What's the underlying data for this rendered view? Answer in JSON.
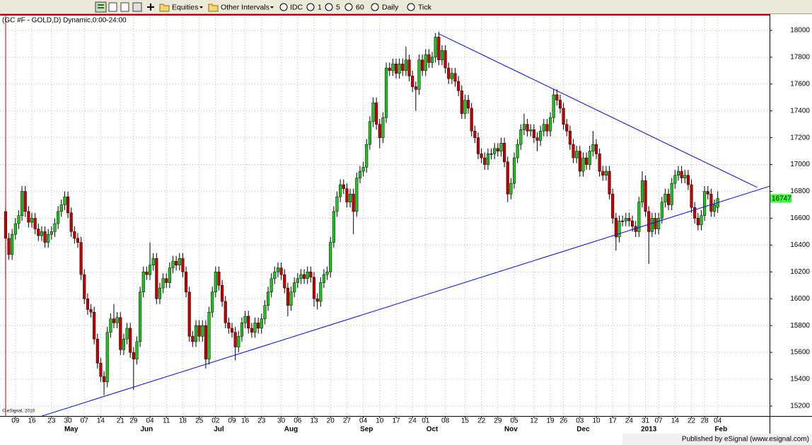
{
  "toolbar": {
    "items": [
      "Equities",
      "Other Intervals",
      "IDC",
      "1",
      "5",
      "60",
      "Daily",
      "Tick"
    ]
  },
  "footer": {
    "published": "Published by eSignal (www.esignal.com)"
  },
  "chart_data": {
    "type": "candlestick",
    "title": "(GC #F - GOLD,D) Dynamic,0:00-24:00",
    "watermark": "© eSignal, 2010",
    "up_color": "#1ec31e",
    "down_color": "#c80000",
    "doji_color": "#000000",
    "grid": true,
    "xlim": [
      -1.7,
      232.8
    ],
    "ylim": [
      15126,
      18121
    ],
    "yticks": [
      15200,
      15400,
      15600,
      15800,
      16000,
      16200,
      16400,
      16600,
      16800,
      17000,
      17200,
      17400,
      17600,
      17800,
      18000
    ],
    "last_price": 16747,
    "last_price_color": "#3cff3c",
    "categories": [
      null,
      null,
      null,
      "09",
      null,
      null,
      null,
      null,
      "16",
      null,
      null,
      null,
      null,
      null,
      "23",
      null,
      null,
      null,
      null,
      "30",
      null,
      null,
      null,
      null,
      "07",
      null,
      null,
      null,
      null,
      "14",
      null,
      null,
      null,
      null,
      null,
      "21",
      null,
      null,
      null,
      "29",
      null,
      null,
      null,
      null,
      "04",
      null,
      null,
      null,
      null,
      "11",
      null,
      null,
      null,
      null,
      "18",
      null,
      null,
      null,
      null,
      "25",
      null,
      null,
      null,
      null,
      "02",
      null,
      null,
      null,
      null,
      "09",
      null,
      null,
      null,
      "16",
      null,
      null,
      null,
      null,
      "23",
      null,
      null,
      null,
      null,
      null,
      "30",
      null,
      null,
      null,
      null,
      "06",
      null,
      null,
      null,
      null,
      "13",
      null,
      null,
      null,
      null,
      "20",
      null,
      null,
      null,
      null,
      "27",
      null,
      null,
      null,
      null,
      "04",
      null,
      null,
      null,
      null,
      "10",
      null,
      null,
      null,
      null,
      "17",
      null,
      null,
      null,
      null,
      "24",
      null,
      null,
      null,
      "01",
      null,
      null,
      null,
      null,
      null,
      "08",
      null,
      null,
      null,
      null,
      null,
      "15",
      null,
      null,
      null,
      null,
      "22",
      null,
      null,
      null,
      null,
      "29",
      null,
      null,
      null,
      null,
      "05",
      null,
      null,
      null,
      null,
      null,
      "12",
      null,
      null,
      null,
      null,
      "19",
      null,
      null,
      null,
      "26",
      null,
      null,
      null,
      null,
      "03",
      null,
      null,
      null,
      null,
      "10",
      null,
      null,
      null,
      null,
      "17",
      null,
      null,
      null,
      null,
      "24",
      null,
      null,
      null,
      null,
      "31",
      null,
      null,
      null,
      "07",
      null,
      null,
      null,
      null,
      "14",
      null,
      null,
      null,
      null,
      "22",
      null,
      null,
      null,
      "28",
      null,
      null,
      null,
      "04"
    ],
    "month_labels": [
      {
        "value": 20,
        "label": "May"
      },
      {
        "value": 43,
        "label": "Jun"
      },
      {
        "value": 65,
        "label": "Jul"
      },
      {
        "value": 87,
        "label": "Aug"
      },
      {
        "value": 110,
        "label": "Sep"
      },
      {
        "value": 130,
        "label": "Oct"
      },
      {
        "value": 154,
        "label": "Nov"
      },
      {
        "value": 176,
        "label": "Dec"
      },
      {
        "value": 196,
        "label": "2013"
      },
      {
        "value": 218,
        "label": "Feb"
      }
    ],
    "open": [
      16650,
      16450,
      16330,
      16480,
      16560,
      16620,
      16800,
      16650,
      16570,
      16600,
      16520,
      16470,
      16500,
      16420,
      16480,
      16500,
      16560,
      16650,
      16700,
      16760,
      16640,
      16500,
      16450,
      16420,
      16180,
      16000,
      15920,
      15900,
      15700,
      15520,
      15420,
      15380,
      15750,
      15850,
      15820,
      15860,
      15620,
      15700,
      15780,
      15600,
      15550,
      15680,
      16050,
      16200,
      16180,
      16250,
      16300,
      16000,
      16080,
      16150,
      16120,
      16230,
      16280,
      16250,
      16300,
      16200,
      16050,
      15720,
      15680,
      15800,
      15720,
      15800,
      15550,
      15900,
      16050,
      16200,
      16100,
      15980,
      15820,
      15780,
      15750,
      15640,
      15720,
      15820,
      15870,
      15780,
      15750,
      15820,
      15780,
      15850,
      15950,
      16050,
      16150,
      16200,
      16230,
      16180,
      16080,
      15950,
      16050,
      16120,
      16150,
      16180,
      16150,
      16200,
      16160,
      16000,
      15980,
      16120,
      16180,
      16200,
      16420,
      16650,
      16760,
      16850,
      16820,
      16720,
      16780,
      16650,
      16900,
      16950,
      16980,
      17150,
      17320,
      17460,
      17300,
      17200,
      17350,
      17720,
      17700,
      17750,
      17680,
      17750,
      17700,
      17780,
      17660,
      17580,
      17560,
      17780,
      17700,
      17820,
      17760,
      17800,
      17950,
      17780,
      17850,
      17720,
      17640,
      17680,
      17620,
      17550,
      17380,
      17480,
      17420,
      17250,
      17200,
      17080,
      17050,
      17000,
      17080,
      17080,
      17120,
      17100,
      17160,
      17020,
      16780,
      16860,
      17050,
      17150,
      17260,
      17300,
      17250,
      17260,
      17200,
      17180,
      17250,
      17300,
      17250,
      17350,
      17520,
      17480,
      17420,
      17300,
      17250,
      17150,
      17050,
      17100,
      16950,
      17050,
      17000,
      17100,
      17150,
      17080,
      16950,
      16920,
      16950,
      16780,
      16600,
      16460,
      16580,
      16580,
      16600,
      16580,
      16540,
      16500,
      16720,
      16880,
      16650,
      16500,
      16600,
      16520,
      16600,
      16720,
      16780,
      16700,
      16860,
      16920,
      16950,
      16900,
      16920,
      16850,
      16680,
      16600,
      16550,
      16620,
      16800,
      16780,
      16650,
      16680
    ],
    "high": [
      16700,
      16490,
      16520,
      16600,
      16660,
      16840,
      16840,
      16690,
      16640,
      16640,
      16560,
      16540,
      16540,
      16520,
      16540,
      16600,
      16690,
      16740,
      16800,
      16800,
      16680,
      16540,
      16490,
      16460,
      16220,
      16040,
      15960,
      15940,
      15740,
      15560,
      15460,
      15790,
      15890,
      15960,
      15900,
      15900,
      15740,
      15820,
      15820,
      15640,
      15720,
      16090,
      16240,
      16240,
      16420,
      16340,
      16340,
      16120,
      16190,
      16190,
      16270,
      16320,
      16320,
      16340,
      16340,
      16240,
      16090,
      15760,
      15840,
      15840,
      15840,
      15840,
      15940,
      16090,
      16240,
      16240,
      16140,
      16020,
      15860,
      15820,
      15790,
      15760,
      15860,
      15910,
      15910,
      15820,
      15860,
      15860,
      15890,
      15990,
      16090,
      16190,
      16240,
      16270,
      16270,
      16220,
      16120,
      16090,
      16160,
      16190,
      16220,
      16220,
      16240,
      16240,
      16200,
      16040,
      16160,
      16220,
      16240,
      16460,
      16690,
      16800,
      16890,
      16890,
      16860,
      16820,
      16820,
      16940,
      16990,
      17020,
      17190,
      17360,
      17500,
      17500,
      17340,
      17390,
      17760,
      17760,
      17790,
      17790,
      17790,
      17790,
      17880,
      17820,
      17700,
      17620,
      17820,
      17820,
      17860,
      17860,
      17840,
      17980,
      17990,
      17890,
      17890,
      17760,
      17720,
      17720,
      17660,
      17590,
      17520,
      17520,
      17460,
      17290,
      17240,
      17120,
      17090,
      17120,
      17120,
      17160,
      17160,
      17200,
      17200,
      17060,
      16900,
      17090,
      17190,
      17300,
      17380,
      17340,
      17300,
      17300,
      17240,
      17290,
      17340,
      17340,
      17390,
      17560,
      17560,
      17520,
      17460,
      17340,
      17290,
      17190,
      17140,
      17140,
      17090,
      17090,
      17140,
      17250,
      17190,
      17120,
      16990,
      16990,
      16990,
      16820,
      16640,
      16620,
      16620,
      16640,
      16640,
      16620,
      16580,
      16760,
      16950,
      16920,
      16690,
      16640,
      16640,
      16640,
      16760,
      16820,
      16820,
      16900,
      16960,
      16990,
      16990,
      16960,
      16960,
      16890,
      16720,
      16640,
      16660,
      16840,
      16840,
      16820,
      16740,
      16800
    ],
    "low": [
      16150,
      16290,
      16290,
      16440,
      16520,
      16580,
      16610,
      16530,
      16530,
      16480,
      16430,
      16430,
      16380,
      16380,
      16440,
      16460,
      16520,
      16610,
      16660,
      16600,
      16460,
      16410,
      16380,
      16140,
      15960,
      15880,
      15860,
      15660,
      15480,
      15380,
      15280,
      15340,
      15710,
      15780,
      15780,
      15580,
      15580,
      15660,
      15560,
      15320,
      15510,
      15640,
      16010,
      16140,
      16140,
      16210,
      15960,
      15960,
      16040,
      16080,
      16080,
      16190,
      16210,
      16210,
      16160,
      16010,
      15680,
      15640,
      15640,
      15680,
      15680,
      15480,
      15510,
      15860,
      16010,
      16060,
      15940,
      15780,
      15740,
      15710,
      15540,
      15600,
      15680,
      15780,
      15740,
      15710,
      15710,
      15740,
      15740,
      15810,
      15910,
      16010,
      16110,
      16160,
      16140,
      16040,
      15870,
      15910,
      16010,
      16080,
      16110,
      16110,
      16110,
      16120,
      15940,
      15920,
      15940,
      16080,
      16140,
      16160,
      16380,
      16610,
      16720,
      16780,
      16680,
      16680,
      16480,
      16610,
      16860,
      16910,
      16940,
      17110,
      17280,
      17260,
      17120,
      17160,
      17310,
      17660,
      17660,
      17640,
      17640,
      17660,
      17660,
      17620,
      17540,
      17400,
      17520,
      17660,
      17660,
      17720,
      17720,
      17760,
      17740,
      17740,
      17680,
      17600,
      17600,
      17580,
      17510,
      17340,
      17340,
      17380,
      17210,
      17160,
      17040,
      17010,
      16960,
      16960,
      17040,
      17040,
      17060,
      17060,
      16980,
      16720,
      16740,
      16820,
      17010,
      17110,
      17220,
      17210,
      17210,
      17160,
      17100,
      17140,
      17210,
      17210,
      17210,
      17310,
      17440,
      17380,
      17260,
      17210,
      17110,
      17010,
      17010,
      16910,
      16910,
      16960,
      16960,
      17060,
      17040,
      16910,
      16880,
      16880,
      16740,
      16560,
      16360,
      16420,
      16540,
      16540,
      16540,
      16500,
      16460,
      16460,
      16680,
      16610,
      16260,
      16460,
      16480,
      16480,
      16560,
      16680,
      16660,
      16660,
      16820,
      16880,
      16860,
      16860,
      16810,
      16640,
      16560,
      16510,
      16510,
      16580,
      16740,
      16610,
      16610,
      16640
    ],
    "close": [
      16450,
      16330,
      16480,
      16560,
      16620,
      16800,
      16650,
      16570,
      16600,
      16520,
      16470,
      16500,
      16420,
      16480,
      16500,
      16560,
      16650,
      16700,
      16760,
      16640,
      16500,
      16450,
      16420,
      16180,
      16000,
      15920,
      15900,
      15700,
      15520,
      15420,
      15380,
      15750,
      15850,
      15820,
      15860,
      15620,
      15700,
      15780,
      15600,
      15550,
      15680,
      16050,
      16200,
      16180,
      16250,
      16300,
      16000,
      16080,
      16150,
      16120,
      16230,
      16280,
      16250,
      16300,
      16200,
      16050,
      15720,
      15680,
      15800,
      15720,
      15800,
      15550,
      15900,
      16050,
      16200,
      16100,
      15980,
      15820,
      15780,
      15750,
      15640,
      15720,
      15820,
      15870,
      15780,
      15750,
      15820,
      15780,
      15850,
      15950,
      16050,
      16150,
      16200,
      16230,
      16180,
      16080,
      15950,
      16050,
      16120,
      16150,
      16180,
      16150,
      16200,
      16160,
      16000,
      15980,
      16120,
      16180,
      16200,
      16420,
      16650,
      16760,
      16850,
      16820,
      16720,
      16780,
      16650,
      16900,
      16950,
      16980,
      17150,
      17320,
      17460,
      17300,
      17200,
      17350,
      17720,
      17700,
      17750,
      17680,
      17750,
      17700,
      17780,
      17660,
      17580,
      17560,
      17780,
      17700,
      17820,
      17760,
      17800,
      17950,
      17780,
      17850,
      17720,
      17640,
      17680,
      17620,
      17550,
      17380,
      17480,
      17420,
      17250,
      17200,
      17080,
      17050,
      17000,
      17080,
      17080,
      17120,
      17100,
      17160,
      17020,
      16780,
      16860,
      17050,
      17150,
      17260,
      17300,
      17250,
      17260,
      17200,
      17180,
      17250,
      17300,
      17250,
      17350,
      17520,
      17480,
      17420,
      17300,
      17250,
      17150,
      17050,
      17100,
      16950,
      17050,
      17000,
      17100,
      17150,
      17080,
      16950,
      16920,
      16950,
      16780,
      16600,
      16460,
      16580,
      16580,
      16600,
      16580,
      16540,
      16500,
      16720,
      16880,
      16650,
      16500,
      16600,
      16520,
      16600,
      16720,
      16780,
      16700,
      16860,
      16920,
      16950,
      16900,
      16920,
      16850,
      16680,
      16600,
      16550,
      16620,
      16800,
      16780,
      16650,
      16700,
      16747
    ],
    "trendlines": [
      {
        "color": "#0000ff",
        "x": [
          132,
          229
        ],
        "y": [
          17975,
          16830
        ]
      },
      {
        "color": "#0000ff",
        "x": [
          11,
          233
        ],
        "y": [
          15125,
          16840
        ]
      }
    ]
  }
}
